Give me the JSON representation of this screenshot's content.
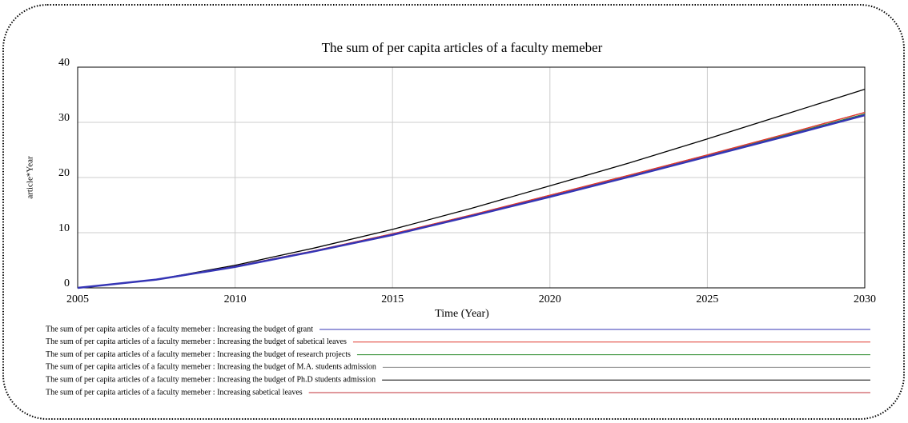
{
  "chart_data": {
    "type": "line",
    "title": "The sum of per capita articles of a faculty memeber",
    "xlabel": "Time (Year)",
    "ylabel": "article*Year",
    "x": [
      2005,
      2007.5,
      2010,
      2012.5,
      2015,
      2017.5,
      2020,
      2022.5,
      2025,
      2027.5,
      2030
    ],
    "xlim": [
      2005,
      2030
    ],
    "xticks": [
      2005,
      2010,
      2015,
      2020,
      2025,
      2030
    ],
    "ylim": [
      0,
      40
    ],
    "yticks": [
      0,
      10,
      20,
      30,
      40
    ],
    "grid": true,
    "legend": "bottom",
    "series": [
      {
        "name": "The sum of per capita articles of a faculty memeber : Increasing the budget of grant",
        "color": "#3535b5",
        "values": [
          0,
          1.5,
          3.8,
          6.6,
          9.6,
          13.0,
          16.5,
          20.1,
          23.8,
          27.5,
          31.3
        ]
      },
      {
        "name": "The sum of per capita articles of a faculty memeber : Increasing the budget of sabetical leaves",
        "color": "#e03a30",
        "values": [
          0,
          1.5,
          3.9,
          6.7,
          9.8,
          13.2,
          16.8,
          20.4,
          24.1,
          27.9,
          31.8
        ]
      },
      {
        "name": "The sum of per capita articles of a faculty memeber : Increasing the budget of research projects",
        "color": "#2a8a2a",
        "values": [
          0,
          1.5,
          3.8,
          6.6,
          9.7,
          13.1,
          16.6,
          20.2,
          23.9,
          27.7,
          31.5
        ]
      },
      {
        "name": "The sum of per capita articles of a faculty memeber : Increasing the budget of M.A. students admission",
        "color": "#888888",
        "values": [
          0,
          1.5,
          3.8,
          6.6,
          9.6,
          13.0,
          16.5,
          20.1,
          23.8,
          27.5,
          31.3
        ]
      },
      {
        "name": "The sum of per capita articles of a faculty memeber : Increasing the budget of Ph.D students admission",
        "color": "#000000",
        "values": [
          0,
          1.5,
          4.1,
          7.2,
          10.6,
          14.4,
          18.5,
          22.6,
          27.0,
          31.5,
          36.0
        ]
      },
      {
        "name": "The sum of per capita articles of a faculty memeber : Increasing sabetical leaves",
        "color": "#c0303a",
        "values": [
          0,
          1.5,
          3.9,
          6.7,
          9.8,
          13.2,
          16.8,
          20.4,
          24.1,
          27.9,
          31.8
        ]
      }
    ]
  }
}
